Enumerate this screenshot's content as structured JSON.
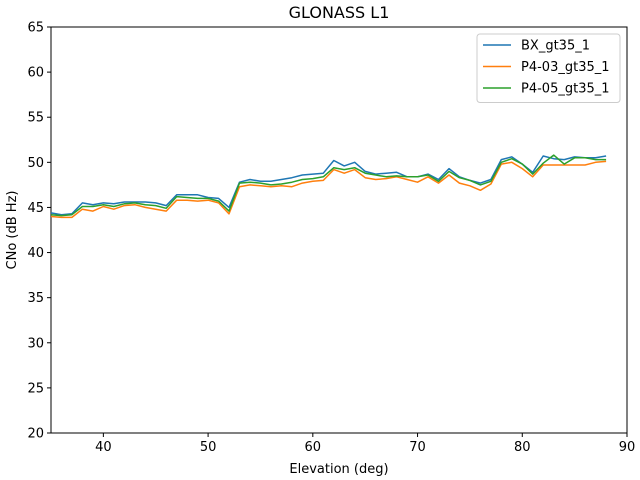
{
  "chart_data": {
    "type": "line",
    "title": "GLONASS L1",
    "xlabel": "Elevation (deg)",
    "ylabel": "CNo (dB Hz)",
    "xlim": [
      35,
      90
    ],
    "ylim": [
      20,
      65
    ],
    "xticks": [
      40,
      50,
      60,
      70,
      80,
      90
    ],
    "yticks": [
      20,
      25,
      30,
      35,
      40,
      45,
      50,
      55,
      60,
      65
    ],
    "grid": false,
    "legend_position": "top-right",
    "x": [
      35,
      36,
      37,
      38,
      39,
      40,
      41,
      42,
      43,
      44,
      45,
      46,
      47,
      48,
      49,
      50,
      51,
      52,
      53,
      54,
      55,
      56,
      57,
      58,
      59,
      60,
      61,
      62,
      63,
      64,
      65,
      66,
      67,
      68,
      69,
      70,
      71,
      72,
      73,
      74,
      75,
      76,
      77,
      78,
      79,
      80,
      81,
      82,
      83,
      84,
      85,
      86,
      87,
      88
    ],
    "series": [
      {
        "name": "BX_gt35_1",
        "color": "#1f77b4",
        "values": [
          44.4,
          44.2,
          44.3,
          45.5,
          45.3,
          45.5,
          45.4,
          45.6,
          45.6,
          45.6,
          45.5,
          45.2,
          46.4,
          46.4,
          46.4,
          46.1,
          46.0,
          45.0,
          47.8,
          48.1,
          47.9,
          47.9,
          48.1,
          48.3,
          48.6,
          48.7,
          48.8,
          50.2,
          49.6,
          50.0,
          49.0,
          48.7,
          48.8,
          48.9,
          48.4,
          48.4,
          48.7,
          48.1,
          49.3,
          48.4,
          48.0,
          47.7,
          48.1,
          50.3,
          50.6,
          49.8,
          48.9,
          50.7,
          50.4,
          50.3,
          50.6,
          50.5,
          50.5,
          50.7
        ]
      },
      {
        "name": "P4-03_gt35_1",
        "color": "#ff7f0e",
        "values": [
          44.0,
          43.9,
          43.9,
          44.8,
          44.6,
          45.1,
          44.8,
          45.2,
          45.3,
          45.0,
          44.8,
          44.6,
          45.8,
          45.8,
          45.7,
          45.8,
          45.5,
          44.3,
          47.3,
          47.5,
          47.4,
          47.3,
          47.4,
          47.3,
          47.7,
          47.9,
          48.0,
          49.2,
          48.8,
          49.2,
          48.3,
          48.1,
          48.2,
          48.4,
          48.1,
          47.8,
          48.4,
          47.7,
          48.6,
          47.7,
          47.4,
          46.9,
          47.6,
          49.8,
          50.0,
          49.3,
          48.4,
          49.7,
          49.7,
          49.7,
          49.7,
          49.7,
          50.0,
          50.1
        ]
      },
      {
        "name": "P4-05_gt35_1",
        "color": "#2ca02c",
        "values": [
          44.2,
          44.1,
          44.2,
          45.1,
          45.1,
          45.3,
          45.1,
          45.4,
          45.5,
          45.3,
          45.2,
          44.9,
          46.2,
          46.1,
          46.0,
          46.0,
          45.7,
          44.6,
          47.7,
          47.8,
          47.7,
          47.5,
          47.6,
          47.8,
          48.1,
          48.2,
          48.4,
          49.4,
          49.2,
          49.4,
          48.8,
          48.6,
          48.4,
          48.5,
          48.4,
          48.4,
          48.6,
          47.9,
          49.0,
          48.3,
          48.0,
          47.5,
          47.9,
          50.0,
          50.4,
          49.8,
          48.7,
          49.9,
          50.8,
          49.8,
          50.5,
          50.5,
          50.3,
          50.3
        ]
      }
    ]
  }
}
